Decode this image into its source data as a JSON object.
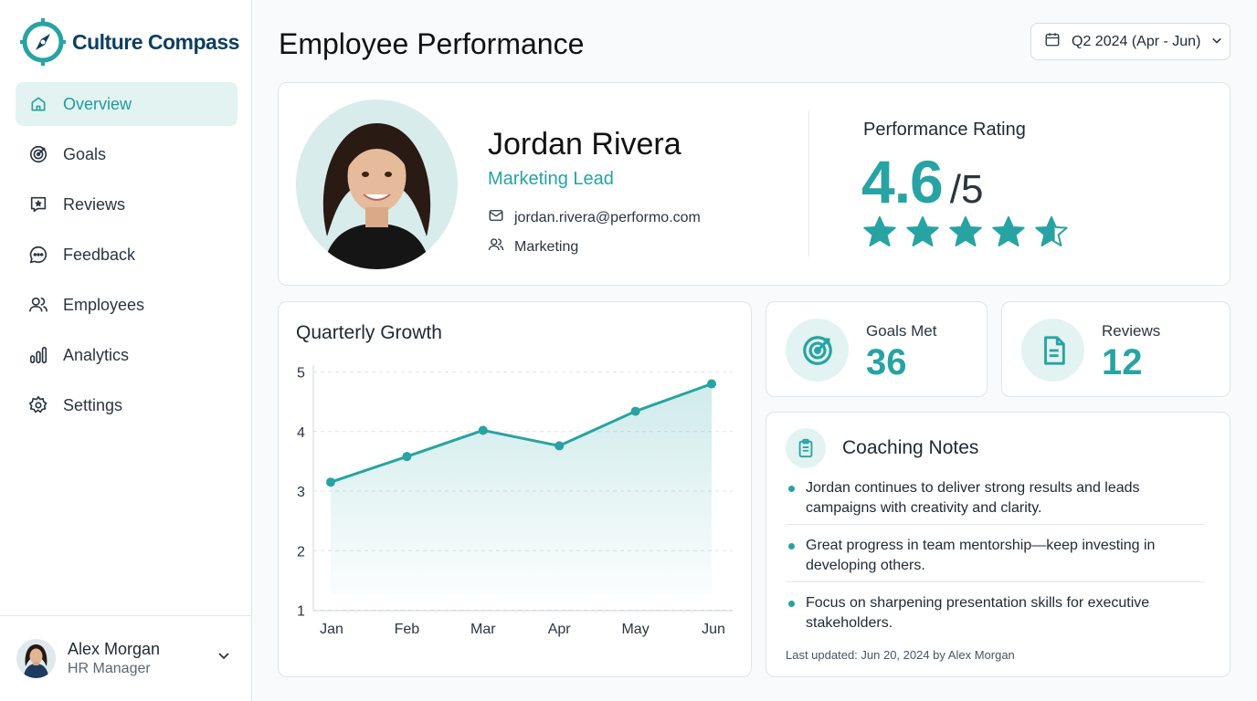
{
  "brand": {
    "name": "Culture Compass",
    "accent": "#27a3a3",
    "navy": "#0d3f61"
  },
  "nav": [
    {
      "label": "Overview",
      "icon": "home-icon",
      "active": true
    },
    {
      "label": "Goals",
      "icon": "target-icon",
      "active": false
    },
    {
      "label": "Reviews",
      "icon": "star-review-icon",
      "active": false
    },
    {
      "label": "Feedback",
      "icon": "chat-icon",
      "active": false
    },
    {
      "label": "Employees",
      "icon": "users-icon",
      "active": false
    },
    {
      "label": "Analytics",
      "icon": "bar-chart-icon",
      "active": false
    },
    {
      "label": "Settings",
      "icon": "gear-icon",
      "active": false
    }
  ],
  "user": {
    "name": "Alex Morgan",
    "role": "HR Manager"
  },
  "header": {
    "title": "Employee Performance",
    "period": "Q2 2024 (Apr - Jun)"
  },
  "employee": {
    "name": "Jordan Rivera",
    "title": "Marketing Lead",
    "email": "jordan.rivera@performo.com",
    "department": "Marketing"
  },
  "rating": {
    "label": "Performance Rating",
    "value": "4.6",
    "max": "/5",
    "score": 4.6,
    "out_of": 5
  },
  "stats": {
    "goals": {
      "label": "Goals Met",
      "value": "36"
    },
    "reviews": {
      "label": "Reviews",
      "value": "12"
    }
  },
  "coaching": {
    "title": "Coaching Notes",
    "notes": [
      "Jordan continues to deliver strong results and leads campaigns with creativity and clarity.",
      "Great progress in team mentorship—keep investing in developing others.",
      "Focus on sharpening presentation skills for executive stakeholders."
    ],
    "footer": "Last updated: Jun 20, 2024 by Alex Morgan"
  },
  "chart_data": {
    "type": "area",
    "title": "Quarterly Growth",
    "categories": [
      "Jan",
      "Feb",
      "Mar",
      "Apr",
      "May",
      "Jun"
    ],
    "values": [
      3.15,
      3.58,
      4.02,
      3.76,
      4.34,
      4.8
    ],
    "ylim": [
      1,
      5
    ],
    "yticks": [
      1,
      2,
      3,
      4,
      5
    ],
    "grid": true,
    "color": "#27a3a3"
  }
}
